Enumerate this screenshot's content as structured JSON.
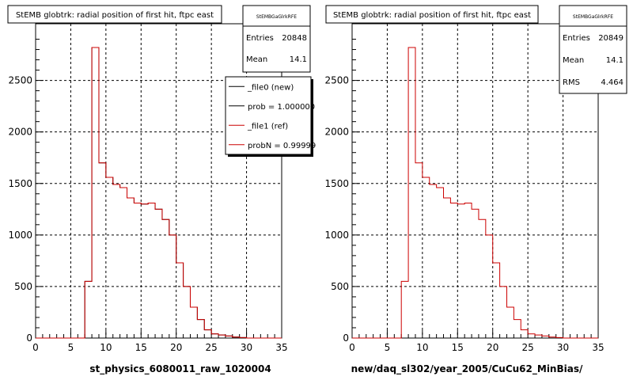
{
  "chart_data": [
    {
      "type": "histogram",
      "title": "StEMB globtrk: radial position of first hit, ftpc east",
      "xlabel": "st_physics_6080011_raw_1020004",
      "ylabel": "",
      "xlim": [
        0,
        35
      ],
      "ylim": [
        0,
        3050
      ],
      "grid": true,
      "x_ticks": [
        "0",
        "5",
        "10",
        "15",
        "20",
        "25",
        "30",
        "35"
      ],
      "y_ticks": [
        "0",
        "500",
        "1000",
        "1500",
        "2000",
        "2500"
      ],
      "bin_edges_start": 0,
      "bin_width": 1,
      "stats_box": {
        "name": "StEMBGaGlrkRFE",
        "rows": [
          {
            "label": "Entries",
            "value": "20848"
          },
          {
            "label": "Mean",
            "value": "14.1"
          }
        ]
      },
      "legend": {
        "placement": "top-right",
        "entries": [
          {
            "label": "_file0 (new)",
            "color": "#000000"
          },
          {
            "label": "prob = 1.000000",
            "color": "#000000"
          },
          {
            "label": "_file1 (ref)",
            "color": "#cc0000"
          },
          {
            "label": "probN = 0.99999",
            "color": "#cc0000"
          }
        ]
      },
      "series": [
        {
          "name": "_file0 (new)",
          "color": "#000000",
          "values": [
            0,
            0,
            0,
            0,
            0,
            0,
            0,
            550,
            2820,
            1700,
            1560,
            1490,
            1460,
            1360,
            1310,
            1300,
            1310,
            1250,
            1150,
            1000,
            730,
            500,
            300,
            180,
            80,
            40,
            30,
            20,
            10,
            5,
            0,
            0,
            0,
            0,
            0
          ]
        },
        {
          "name": "_file1 (ref)",
          "color": "#cc0000",
          "values": [
            0,
            0,
            0,
            0,
            0,
            0,
            0,
            550,
            2820,
            1700,
            1560,
            1490,
            1460,
            1360,
            1310,
            1300,
            1310,
            1250,
            1150,
            1000,
            730,
            500,
            300,
            180,
            80,
            40,
            30,
            20,
            10,
            5,
            0,
            0,
            0,
            0,
            0
          ]
        }
      ]
    },
    {
      "type": "histogram",
      "title": "StEMB globtrk: radial position of first hit, ftpc east",
      "xlabel": "new/daq_sl302/year_2005/CuCu62_MinBias/",
      "ylabel": "",
      "xlim": [
        0,
        35
      ],
      "ylim": [
        0,
        3050
      ],
      "grid": true,
      "x_ticks": [
        "0",
        "5",
        "10",
        "15",
        "20",
        "25",
        "30",
        "35"
      ],
      "y_ticks": [
        "0",
        "500",
        "1000",
        "1500",
        "2000",
        "2500"
      ],
      "bin_edges_start": 0,
      "bin_width": 1,
      "stats_box": {
        "name": "StEMBGaGlrkRFE",
        "rows": [
          {
            "label": "Entries",
            "value": "20849"
          },
          {
            "label": "Mean",
            "value": "14.1"
          },
          {
            "label": "RMS",
            "value": "4.464"
          }
        ]
      },
      "series": [
        {
          "name": "",
          "color": "#cc0000",
          "values": [
            0,
            0,
            0,
            0,
            0,
            0,
            0,
            550,
            2820,
            1700,
            1560,
            1490,
            1460,
            1360,
            1310,
            1300,
            1310,
            1250,
            1150,
            1000,
            730,
            500,
            300,
            180,
            80,
            40,
            30,
            20,
            10,
            5,
            0,
            0,
            0,
            0,
            0
          ]
        }
      ]
    }
  ]
}
